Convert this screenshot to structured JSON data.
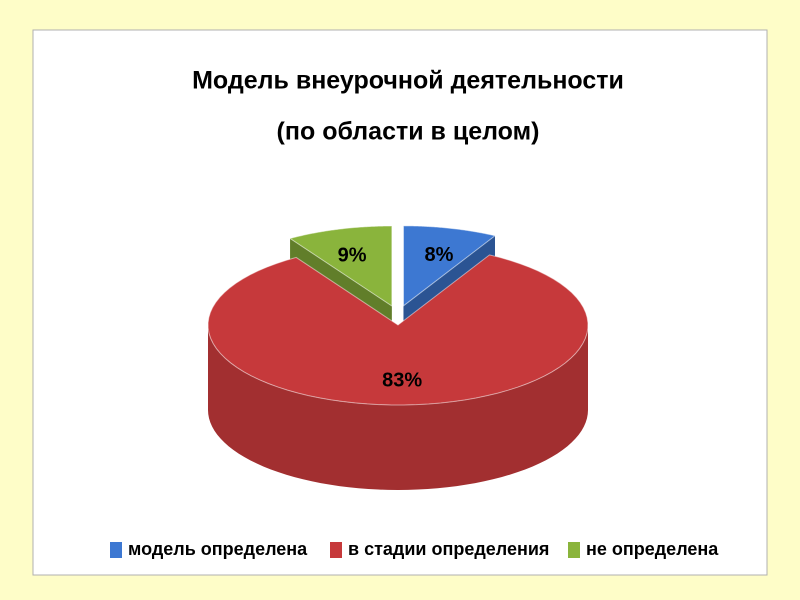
{
  "chart_data": {
    "type": "pie",
    "title": "Модель внеурочной деятельности",
    "subtitle": "(по области в целом)",
    "categories": [
      "модель определена",
      "в стадии определения",
      "не определена"
    ],
    "values": [
      8,
      83,
      9
    ],
    "value_labels": [
      "8%",
      "83%",
      "9%"
    ],
    "colors": [
      "#3d78d2",
      "#c6393b",
      "#8ab43c"
    ],
    "legend": "bottom"
  }
}
